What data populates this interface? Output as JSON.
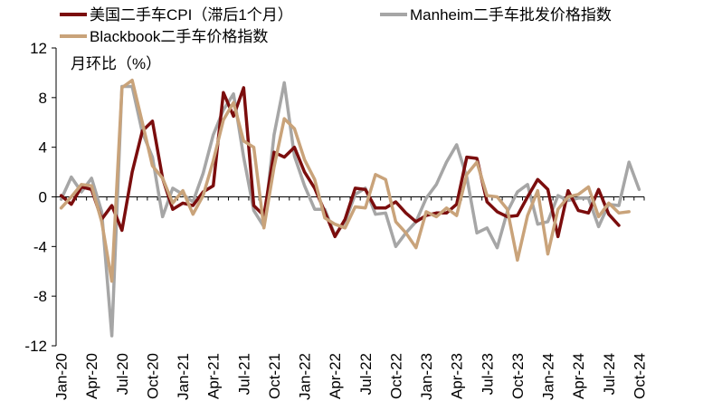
{
  "chart_data": {
    "type": "line",
    "ylabel": "月环比（%）",
    "ylim": [
      -12,
      12
    ],
    "yticks": [
      12,
      8,
      4,
      0,
      -4,
      -8,
      -12
    ],
    "yticks_color": {
      "positive": "#000000",
      "negative": "#c00000"
    },
    "xticks": [
      "Jan-20",
      "Apr-20",
      "Jul-20",
      "Oct-20",
      "Jan-21",
      "Apr-21",
      "Jul-21",
      "Oct-21",
      "Jan-22",
      "Apr-22",
      "Jul-22",
      "Oct-22",
      "Jan-23",
      "Apr-23",
      "Jul-23",
      "Oct-23",
      "Jan-24",
      "Apr-24",
      "Jul-24",
      "Oct-24"
    ],
    "x_months": [
      "2020-01",
      "2020-02",
      "2020-03",
      "2020-04",
      "2020-05",
      "2020-06",
      "2020-07",
      "2020-08",
      "2020-09",
      "2020-10",
      "2020-11",
      "2020-12",
      "2021-01",
      "2021-02",
      "2021-03",
      "2021-04",
      "2021-05",
      "2021-06",
      "2021-07",
      "2021-08",
      "2021-09",
      "2021-10",
      "2021-11",
      "2021-12",
      "2022-01",
      "2022-02",
      "2022-03",
      "2022-04",
      "2022-05",
      "2022-06",
      "2022-07",
      "2022-08",
      "2022-09",
      "2022-10",
      "2022-11",
      "2022-12",
      "2023-01",
      "2023-02",
      "2023-03",
      "2023-04",
      "2023-05",
      "2023-06",
      "2023-07",
      "2023-08",
      "2023-09",
      "2023-10",
      "2023-11",
      "2023-12",
      "2024-01",
      "2024-02",
      "2024-03",
      "2024-04",
      "2024-05",
      "2024-06",
      "2024-07",
      "2024-08",
      "2024-09",
      "2024-10"
    ],
    "grid": false,
    "legend_position": "top",
    "series": [
      {
        "name": "美国二手车CPI（滞后1个月）",
        "color": "#7b0d0d",
        "values": [
          0.1,
          -0.6,
          0.8,
          0.6,
          -1.8,
          -0.7,
          -2.7,
          2.0,
          5.3,
          6.1,
          1.5,
          -1.0,
          -0.5,
          -0.7,
          0.4,
          0.9,
          8.4,
          6.5,
          8.8,
          -0.7,
          -1.5,
          3.6,
          3.2,
          4.0,
          2.0,
          0.7,
          -1.2,
          -3.2,
          -1.8,
          0.7,
          0.6,
          -0.9,
          -0.9,
          -0.4,
          -1.3,
          -2.0,
          -1.5,
          -1.3,
          -1.3,
          -0.6,
          3.2,
          3.1,
          -0.4,
          -1.2,
          -1.6,
          -1.5,
          0.0,
          1.4,
          0.6,
          -3.2,
          0.5,
          -1.1,
          -1.3,
          0.6,
          -1.4,
          -2.3,
          null,
          null
        ]
      },
      {
        "name": "Manheim二手车批发价格指数",
        "color": "#a6a6a6",
        "values": [
          -0.2,
          1.6,
          0.4,
          1.5,
          -1.2,
          -11.2,
          8.9,
          8.9,
          5.2,
          3.2,
          -1.6,
          0.7,
          0.2,
          -0.4,
          1.9,
          5.0,
          7.0,
          8.3,
          3.2,
          -1.1,
          -2.4,
          5.0,
          9.2,
          3.3,
          0.9,
          -1.0,
          -1.0,
          -3.1,
          -2.0,
          0.2,
          0.7,
          -1.4,
          -1.3,
          -4.0,
          -2.9,
          -2.0,
          -0.1,
          1.0,
          2.8,
          4.2,
          1.6,
          -2.9,
          -2.5,
          -4.1,
          -1.2,
          0.4,
          1.0,
          -2.2,
          -2.0,
          0.1,
          -0.3,
          -0.1,
          -0.1,
          -2.4,
          -0.6,
          -0.7,
          2.8,
          0.6
        ]
      },
      {
        "name": "Blackbook二手车价格指数",
        "color": "#c9a37a",
        "values": [
          -0.9,
          0.0,
          1.0,
          0.9,
          -2.0,
          -6.8,
          8.8,
          9.4,
          6.0,
          2.5,
          1.5,
          -0.5,
          0.5,
          -1.4,
          0.1,
          2.9,
          6.2,
          7.6,
          4.5,
          4.0,
          -2.5,
          2.4,
          6.3,
          5.5,
          3.0,
          1.4,
          -1.7,
          -2.2,
          -2.5,
          -0.8,
          -0.9,
          1.8,
          1.4,
          -2.0,
          -2.9,
          -4.1,
          -1.2,
          -1.6,
          -0.9,
          -1.5,
          1.8,
          2.8,
          0.1,
          0.0,
          -1.0,
          -5.1,
          -1.5,
          0.5,
          -4.6,
          -1.0,
          0.0,
          0.2,
          0.8,
          -1.6,
          -0.5,
          -1.3,
          -1.2,
          null
        ]
      }
    ]
  }
}
